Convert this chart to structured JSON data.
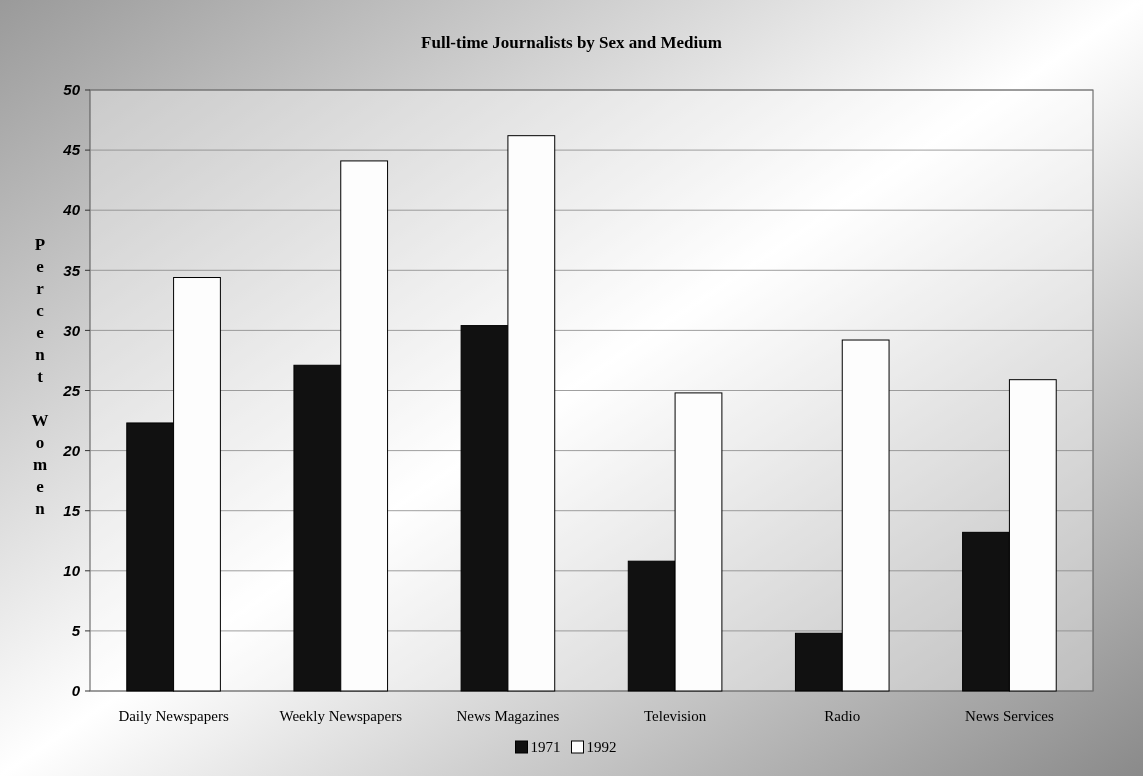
{
  "chart_data": {
    "type": "bar",
    "title": "Full-time Journalists by Sex and Medium",
    "ylabel": "Percent Women",
    "categories": [
      "Daily Newspapers",
      "Weekly Newspapers",
      "News Magazines",
      "Television",
      "Radio",
      "News Services"
    ],
    "series": [
      {
        "name": "1971",
        "color": "#111111",
        "values": [
          22.3,
          27.1,
          30.4,
          10.8,
          4.8,
          13.2
        ]
      },
      {
        "name": "1992",
        "color": "#fdfdfd",
        "values": [
          34.4,
          44.1,
          46.2,
          24.8,
          29.2,
          25.9
        ]
      }
    ],
    "ylim": [
      0,
      50
    ],
    "yticks": [
      0,
      5,
      10,
      15,
      20,
      25,
      30,
      35,
      40,
      45,
      50
    ],
    "grid": "y",
    "legend": "bottom"
  }
}
